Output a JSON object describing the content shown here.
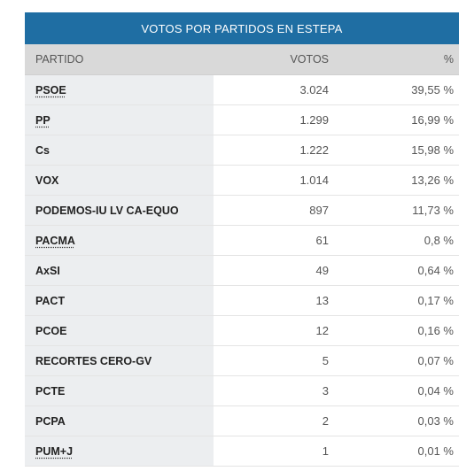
{
  "table": {
    "title": "VOTOS POR PARTIDOS EN ESTEPA",
    "headers": {
      "party": "PARTIDO",
      "votes": "VOTOS",
      "pct": "%"
    },
    "rows": [
      {
        "party": "PSOE",
        "votes": "3.024",
        "pct": "39,55 %",
        "link": true
      },
      {
        "party": "PP",
        "votes": "1.299",
        "pct": "16,99 %",
        "link": true
      },
      {
        "party": "Cs",
        "votes": "1.222",
        "pct": "15,98 %",
        "link": false
      },
      {
        "party": "VOX",
        "votes": "1.014",
        "pct": "13,26 %",
        "link": false
      },
      {
        "party": "PODEMOS-IU LV CA-EQUO",
        "votes": "897",
        "pct": "11,73 %",
        "link": false
      },
      {
        "party": "PACMA",
        "votes": "61",
        "pct": "0,8 %",
        "link": true
      },
      {
        "party": "AxSI",
        "votes": "49",
        "pct": "0,64 %",
        "link": false
      },
      {
        "party": "PACT",
        "votes": "13",
        "pct": "0,17 %",
        "link": false
      },
      {
        "party": "PCOE",
        "votes": "12",
        "pct": "0,16 %",
        "link": false
      },
      {
        "party": "RECORTES CERO-GV",
        "votes": "5",
        "pct": "0,07 %",
        "link": false
      },
      {
        "party": "PCTE",
        "votes": "3",
        "pct": "0,04 %",
        "link": false
      },
      {
        "party": "PCPA",
        "votes": "2",
        "pct": "0,03 %",
        "link": false
      },
      {
        "party": "PUM+J",
        "votes": "1",
        "pct": "0,01 %",
        "link": true
      }
    ]
  },
  "colors": {
    "title_bg": "#1f6ea3",
    "header_bg": "#d9d9d9",
    "party_cell_bg": "#eceef0"
  }
}
